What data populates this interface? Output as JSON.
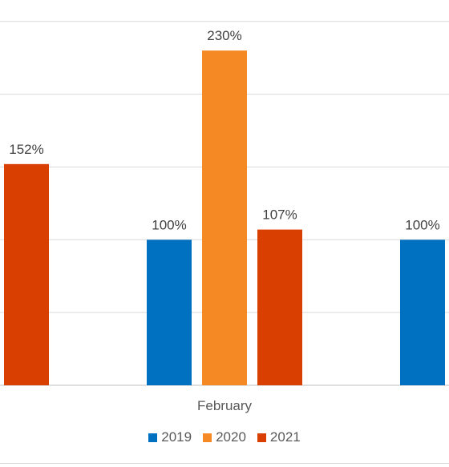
{
  "chart_data": {
    "type": "bar",
    "categories": [
      "",
      "February",
      ""
    ],
    "ylim": [
      0,
      260
    ],
    "gridlines": [
      0,
      50,
      100,
      150,
      200,
      250
    ],
    "grid": true,
    "legend_position": "bottom",
    "series": [
      {
        "name": "2019",
        "color": "#0070C0",
        "values": [
          null,
          100,
          100
        ]
      },
      {
        "name": "2020",
        "color": "#F58A24",
        "values": [
          null,
          230,
          null
        ]
      },
      {
        "name": "2021",
        "color": "#D93F00",
        "values": [
          152,
          107,
          null
        ]
      }
    ],
    "data_labels": [
      [
        null,
        "100%",
        "100%"
      ],
      [
        null,
        "230%",
        null
      ],
      [
        "152%",
        "107%",
        null
      ]
    ]
  }
}
